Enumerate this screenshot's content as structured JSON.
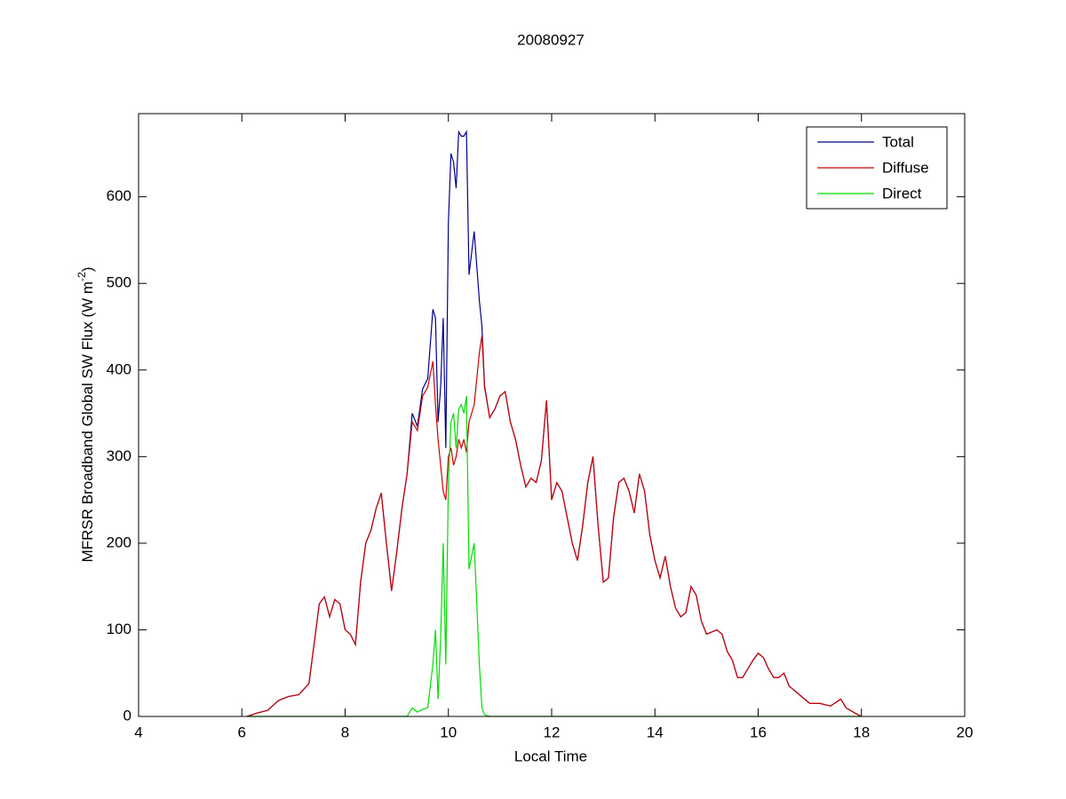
{
  "chart_data": {
    "type": "line",
    "title": "20080927",
    "xlabel": "Local Time",
    "ylabel": [
      "MFRSR Broadband Global SW Flux (W m",
      "-2",
      ")"
    ],
    "xlim": [
      4,
      20
    ],
    "xticks": [
      4,
      6,
      8,
      10,
      12,
      14,
      16,
      18,
      20
    ],
    "ylim": [
      0,
      696
    ],
    "yticks": [
      0,
      100,
      200,
      300,
      400,
      500,
      600
    ],
    "grid": false,
    "legend": "upper right",
    "x": [
      6.1,
      6.3,
      6.5,
      6.7,
      6.9,
      7.1,
      7.3,
      7.5,
      7.6,
      7.7,
      7.8,
      7.9,
      8.0,
      8.1,
      8.2,
      8.3,
      8.4,
      8.5,
      8.6,
      8.7,
      8.8,
      8.9,
      9.0,
      9.1,
      9.2,
      9.3,
      9.4,
      9.5,
      9.6,
      9.7,
      9.75,
      9.8,
      9.85,
      9.9,
      9.95,
      10.0,
      10.05,
      10.1,
      10.15,
      10.2,
      10.25,
      10.3,
      10.35,
      10.4,
      10.5,
      10.6,
      10.65,
      10.7,
      10.8,
      10.9,
      11.0,
      11.1,
      11.2,
      11.3,
      11.4,
      11.5,
      11.6,
      11.7,
      11.8,
      11.9,
      12.0,
      12.1,
      12.2,
      12.3,
      12.4,
      12.5,
      12.6,
      12.7,
      12.8,
      12.9,
      13.0,
      13.1,
      13.2,
      13.3,
      13.4,
      13.5,
      13.6,
      13.7,
      13.8,
      13.9,
      14.0,
      14.1,
      14.2,
      14.3,
      14.4,
      14.5,
      14.6,
      14.7,
      14.8,
      14.9,
      15.0,
      15.2,
      15.3,
      15.4,
      15.5,
      15.6,
      15.7,
      15.8,
      15.9,
      16.0,
      16.1,
      16.2,
      16.3,
      16.4,
      16.5,
      16.6,
      16.8,
      17.0,
      17.2,
      17.4,
      17.6,
      17.7,
      17.9,
      18.0
    ],
    "series": [
      {
        "name": "Total",
        "color": "#00008f",
        "values": [
          0,
          4,
          7,
          18,
          23,
          25,
          38,
          130,
          138,
          115,
          135,
          130,
          100,
          95,
          83,
          155,
          200,
          215,
          240,
          258,
          200,
          145,
          190,
          240,
          280,
          350,
          335,
          378,
          390,
          470,
          460,
          340,
          380,
          460,
          310,
          570,
          650,
          640,
          610,
          675,
          670,
          670,
          675,
          510,
          560,
          480,
          450,
          382,
          345,
          355,
          370,
          375,
          340,
          320,
          290,
          265,
          275,
          270,
          295,
          365,
          250,
          270,
          260,
          230,
          200,
          180,
          220,
          270,
          300,
          220,
          155,
          160,
          230,
          270,
          275,
          260,
          235,
          280,
          260,
          210,
          180,
          160,
          185,
          150,
          125,
          115,
          120,
          150,
          140,
          110,
          95,
          100,
          95,
          75,
          65,
          45,
          45,
          55,
          65,
          73,
          68,
          55,
          45,
          45,
          50,
          35,
          25,
          15,
          15,
          12,
          20,
          10,
          3,
          0
        ]
      },
      {
        "name": "Diffuse",
        "color": "#cc0000",
        "values": [
          0,
          4,
          7,
          18,
          23,
          25,
          38,
          130,
          138,
          115,
          135,
          130,
          100,
          95,
          83,
          155,
          200,
          215,
          240,
          258,
          200,
          145,
          190,
          240,
          280,
          340,
          330,
          370,
          380,
          410,
          360,
          320,
          290,
          260,
          250,
          300,
          310,
          290,
          300,
          320,
          310,
          320,
          305,
          340,
          360,
          420,
          440,
          380,
          345,
          355,
          370,
          375,
          340,
          320,
          290,
          265,
          275,
          270,
          295,
          365,
          250,
          270,
          260,
          230,
          200,
          180,
          220,
          270,
          300,
          220,
          155,
          160,
          230,
          270,
          275,
          260,
          235,
          280,
          260,
          210,
          180,
          160,
          185,
          150,
          125,
          115,
          120,
          150,
          140,
          110,
          95,
          100,
          95,
          75,
          65,
          45,
          45,
          55,
          65,
          73,
          68,
          55,
          45,
          45,
          50,
          35,
          25,
          15,
          15,
          12,
          20,
          10,
          3,
          0
        ]
      },
      {
        "name": "Direct",
        "color": "#00dd00",
        "values": [
          0,
          0,
          0,
          0,
          0,
          0,
          0,
          0,
          0,
          0,
          0,
          0,
          0,
          0,
          0,
          0,
          0,
          0,
          0,
          0,
          0,
          0,
          0,
          0,
          0,
          10,
          5,
          8,
          10,
          60,
          100,
          20,
          90,
          200,
          60,
          270,
          340,
          350,
          310,
          355,
          360,
          350,
          370,
          170,
          200,
          60,
          10,
          2,
          0,
          0,
          0,
          0,
          0,
          0,
          0,
          0,
          0,
          0,
          0,
          0,
          0,
          0,
          0,
          0,
          0,
          0,
          0,
          0,
          0,
          0,
          0,
          0,
          0,
          0,
          0,
          0,
          0,
          0,
          0,
          0,
          0,
          0,
          0,
          0,
          0,
          0,
          0,
          0,
          0,
          0,
          0,
          0,
          0,
          0,
          0,
          0,
          0,
          0,
          0,
          0,
          0,
          0,
          0,
          0,
          0,
          0,
          0,
          0,
          0,
          0,
          0,
          0,
          0,
          0
        ]
      }
    ]
  }
}
